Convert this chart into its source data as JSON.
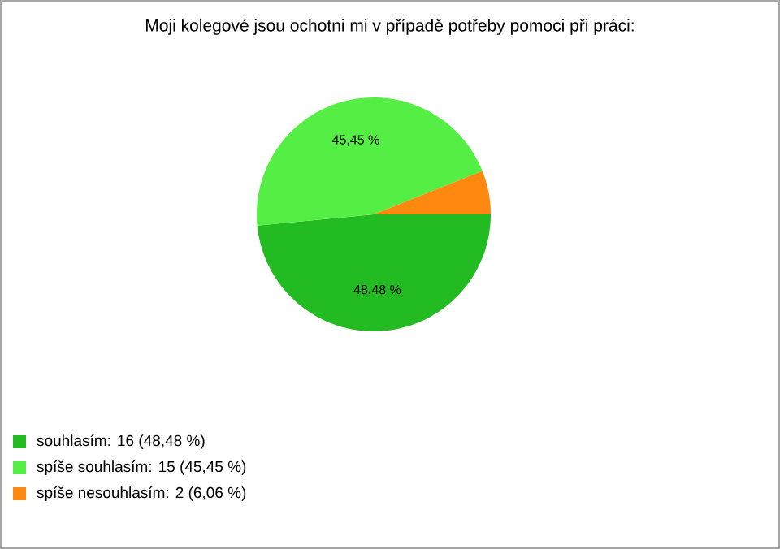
{
  "chart_data": {
    "type": "pie",
    "title": "Moji kolegové jsou ochotni mi v případě potřeby pomoci při práci:",
    "categories": [
      "souhlasím: 16 (48,48 %)",
      "spíše souhlasím: 15 (45,45 %)",
      "spíše nesouhlasím: 2 (6,06 %)"
    ],
    "values": [
      48.48,
      45.45,
      6.06
    ],
    "value_labels": [
      "48,48 %",
      "45,45 %",
      null
    ],
    "colors": [
      "#22bb22",
      "#55ee44",
      "#ff8811"
    ],
    "legend": "bottom left"
  }
}
